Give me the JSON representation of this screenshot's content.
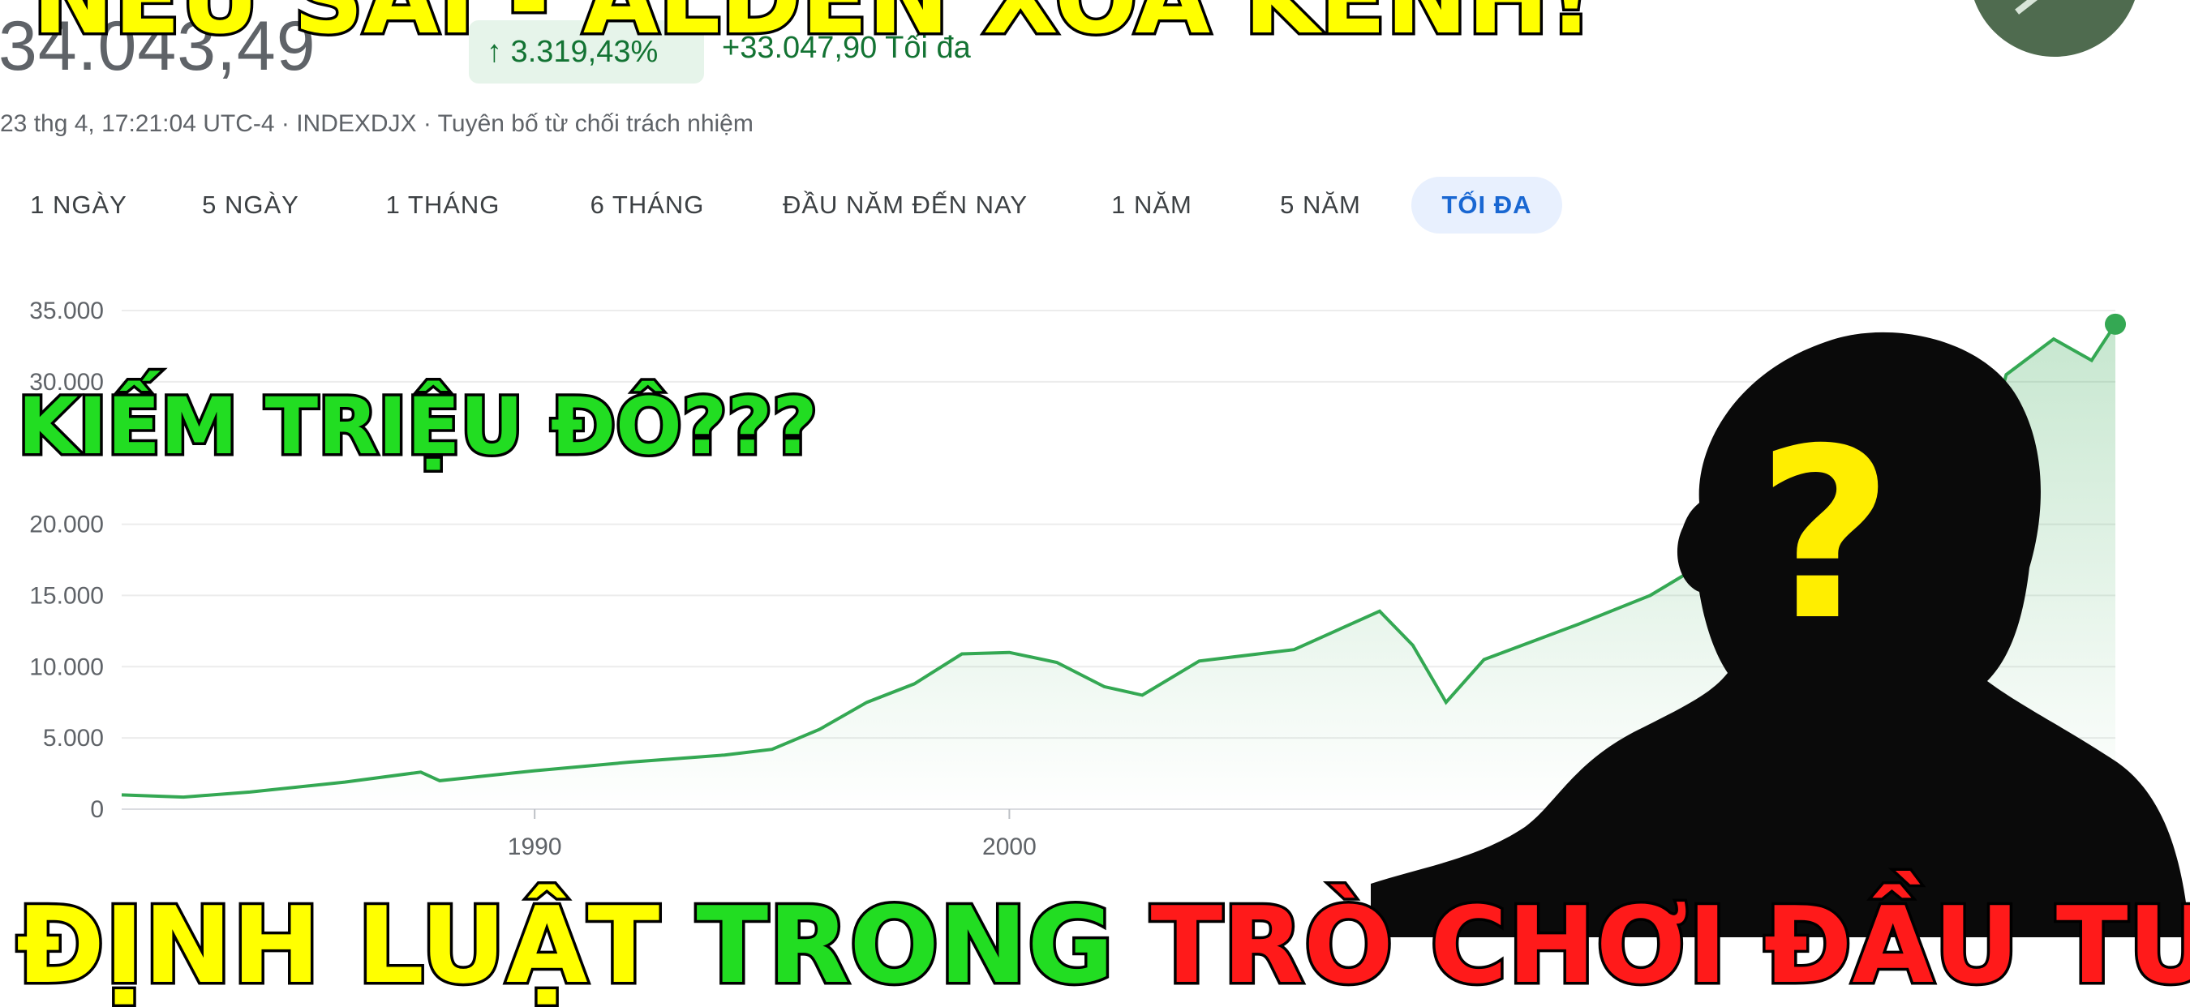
{
  "banners": {
    "top": "NẾU SAI - ALDEN XÓA KÊNH!",
    "middle": "KIẾM TRIỆU ĐÔ???",
    "bottom": [
      "ĐỊNH LUẬT",
      "TRONG",
      "TRÒ",
      "CHƠI ĐẦU TƯ"
    ],
    "question_mark": "?"
  },
  "quote": {
    "price": "34.043,49",
    "change_pct": "↑ 3.319,43%",
    "change_abs": "+33.047,90 Tối đa",
    "meta": "23 thg 4, 17:21:04 UTC-4 · INDEXDJX · Tuyên bố từ chối trách nhiệm"
  },
  "tabs": [
    {
      "label": "1 NGÀY"
    },
    {
      "label": "5 NGÀY"
    },
    {
      "label": "1 THÁNG"
    },
    {
      "label": "6 THÁNG"
    },
    {
      "label": "ĐẦU NĂM ĐẾN NAY"
    },
    {
      "label": "1 NĂM"
    },
    {
      "label": "5 NĂM"
    },
    {
      "label": "TỐI ĐA",
      "active": true
    }
  ],
  "colors": {
    "line": "#34a853",
    "area": "#34a853",
    "active_tab_bg": "#e8f0fe",
    "active_tab_text": "#1967d2",
    "positive": "#137333"
  },
  "chart_data": {
    "type": "area",
    "x_labels": [
      "1990",
      "2000"
    ],
    "y_ticks": [
      "0",
      "5.000",
      "10.000",
      "15.000",
      "20.000",
      "30.000",
      "35.000"
    ],
    "ylim": [
      0,
      35000
    ],
    "xlim": [
      1981.3,
      2023.3
    ],
    "grid": true,
    "series": [
      {
        "x": [
          1981.3,
          1982.6,
          1984.0,
          1986.0,
          1987.6,
          1988.0,
          1990.0,
          1992.0,
          1994.0,
          1995.0,
          1996.0,
          1997.0,
          1998.0,
          1999.0,
          2000.0,
          2001.0,
          2002.0,
          2002.8,
          2004.0,
          2006.0,
          2007.8,
          2008.5,
          2009.2,
          2010.0,
          2012.0,
          2013.5,
          2014.5,
          2016.0,
          2017.0,
          2018.0,
          2019.0,
          2020.0,
          2020.2,
          2020.6,
          2021.0,
          2022.0,
          2022.8,
          2023.3
        ],
        "y": [
          1000,
          850,
          1200,
          1900,
          2600,
          2000,
          2700,
          3300,
          3800,
          4200,
          5600,
          7500,
          8800,
          10900,
          11000,
          10300,
          8600,
          8000,
          10400,
          11200,
          13900,
          11500,
          7500,
          10500,
          13000,
          15000,
          17000,
          17800,
          21000,
          25000,
          26000,
          28500,
          19000,
          25500,
          30500,
          33000,
          31500,
          34043
        ]
      }
    ]
  }
}
